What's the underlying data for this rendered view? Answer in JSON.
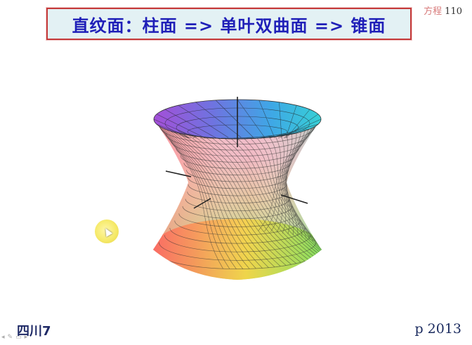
{
  "slide": {
    "title": "直纹面：柱面 => 单叶双曲面 => 锥面",
    "section_label": "方程",
    "page_number": "110",
    "footer_left": "四川7",
    "footer_right": "p 2013",
    "colors": {
      "title_text": "#1f1fb8",
      "title_bg": "#e3f1f4",
      "title_border": "#c43a3a"
    }
  },
  "figure": {
    "name": "hyperboloid-of-one-sheet",
    "color_map": "rainbow"
  },
  "nav": {
    "icons": [
      "prev-icon",
      "pen-icon",
      "menu-icon",
      "next-icon"
    ],
    "glyphs": [
      "◂",
      "✎",
      "▭",
      "▸"
    ]
  }
}
